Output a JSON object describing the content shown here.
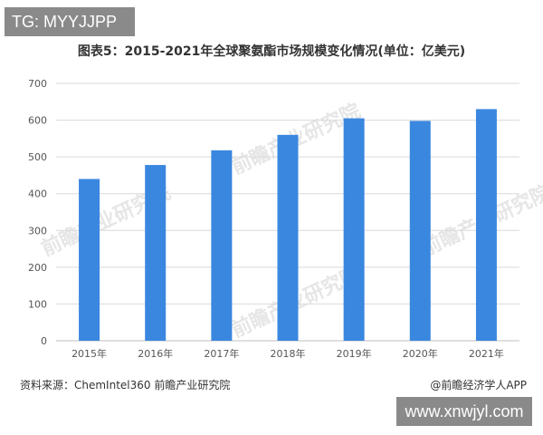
{
  "overlays": {
    "top_left_tag": "TG: MYYJJPP",
    "bottom_right_tag": "www.xnwjyl.com"
  },
  "watermark": "前瞻产业研究院",
  "footer": {
    "source": "资料来源：ChemIntel360 前瞻产业研究院",
    "brand": "@前瞻经济学人APP"
  },
  "colors": {
    "bar": "#3a87e0",
    "grid": "#d9d9d9",
    "axis": "#bfbfbf"
  },
  "chart_data": {
    "type": "bar",
    "title": "图表5：2015-2021年全球聚氨酯市场规模变化情况(单位：亿美元)",
    "xlabel": "",
    "ylabel": "",
    "categories": [
      "2015年",
      "2016年",
      "2017年",
      "2018年",
      "2019年",
      "2020年",
      "2021年"
    ],
    "values": [
      440,
      478,
      518,
      560,
      605,
      598,
      630
    ],
    "ylim": [
      0,
      700
    ],
    "yticks": [
      0,
      100,
      200,
      300,
      400,
      500,
      600,
      700
    ],
    "grid": true,
    "legend": "none"
  }
}
